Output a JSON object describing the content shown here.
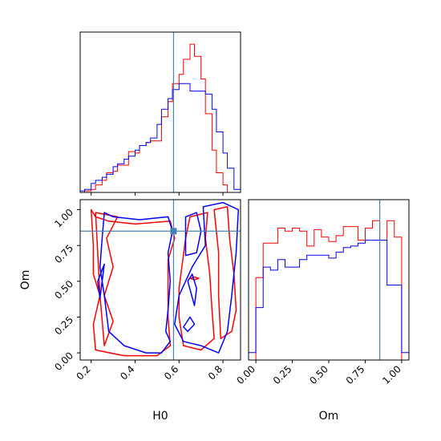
{
  "chart_data": [
    {
      "panel": "H0-marginal",
      "type": "histogram",
      "x_range": [
        0.15,
        0.88
      ],
      "truth": 0.575,
      "truth_color": "#4682b4",
      "series": [
        {
          "color": "#ff0000",
          "bins": [
            [
              0.15,
              0.17,
              0
            ],
            [
              0.17,
              0.2,
              1
            ],
            [
              0.2,
              0.22,
              2
            ],
            [
              0.22,
              0.25,
              5
            ],
            [
              0.25,
              0.27,
              8
            ],
            [
              0.27,
              0.3,
              13
            ],
            [
              0.3,
              0.32,
              14
            ],
            [
              0.32,
              0.35,
              18
            ],
            [
              0.35,
              0.37,
              18
            ],
            [
              0.37,
              0.4,
              27
            ],
            [
              0.4,
              0.42,
              26
            ],
            [
              0.42,
              0.45,
              31
            ],
            [
              0.45,
              0.47,
              33
            ],
            [
              0.47,
              0.5,
              34
            ],
            [
              0.5,
              0.52,
              34
            ],
            [
              0.52,
              0.55,
              50
            ],
            [
              0.55,
              0.57,
              60
            ],
            [
              0.57,
              0.6,
              72
            ],
            [
              0.6,
              0.62,
              78
            ],
            [
              0.62,
              0.65,
              88
            ],
            [
              0.65,
              0.67,
              98
            ],
            [
              0.67,
              0.7,
              90
            ],
            [
              0.7,
              0.72,
              75
            ],
            [
              0.72,
              0.75,
              52
            ],
            [
              0.75,
              0.77,
              28
            ],
            [
              0.77,
              0.8,
              13
            ],
            [
              0.8,
              0.82,
              5
            ],
            [
              0.82,
              0.85,
              0
            ]
          ]
        },
        {
          "color": "#0000ff",
          "bins": [
            [
              0.15,
              0.17,
              1
            ],
            [
              0.17,
              0.2,
              2
            ],
            [
              0.2,
              0.22,
              6
            ],
            [
              0.22,
              0.25,
              8
            ],
            [
              0.25,
              0.27,
              10
            ],
            [
              0.27,
              0.3,
              12
            ],
            [
              0.3,
              0.32,
              17
            ],
            [
              0.32,
              0.35,
              19
            ],
            [
              0.35,
              0.37,
              22
            ],
            [
              0.37,
              0.4,
              24
            ],
            [
              0.4,
              0.42,
              28
            ],
            [
              0.42,
              0.45,
              31
            ],
            [
              0.45,
              0.47,
              33
            ],
            [
              0.47,
              0.5,
              36
            ],
            [
              0.5,
              0.52,
              45
            ],
            [
              0.52,
              0.55,
              55
            ],
            [
              0.55,
              0.57,
              62
            ],
            [
              0.57,
              0.6,
              68
            ],
            [
              0.6,
              0.62,
              72
            ],
            [
              0.62,
              0.65,
              72
            ],
            [
              0.65,
              0.67,
              67
            ],
            [
              0.67,
              0.7,
              67
            ],
            [
              0.7,
              0.72,
              67
            ],
            [
              0.72,
              0.75,
              65
            ],
            [
              0.75,
              0.77,
              55
            ],
            [
              0.77,
              0.8,
              40
            ],
            [
              0.8,
              0.82,
              26
            ],
            [
              0.82,
              0.85,
              16
            ],
            [
              0.85,
              0.88,
              2
            ]
          ]
        }
      ]
    },
    {
      "panel": "Om-marginal",
      "type": "histogram",
      "x_range": [
        -0.05,
        1.05
      ],
      "truth": 0.85,
      "truth_color": "#4682b4",
      "series": [
        {
          "color": "#ff0000",
          "bins": [
            [
              0.0,
              0.05,
              55
            ],
            [
              0.05,
              0.1,
              78
            ],
            [
              0.1,
              0.15,
              78
            ],
            [
              0.15,
              0.2,
              88
            ],
            [
              0.2,
              0.25,
              86
            ],
            [
              0.25,
              0.3,
              88
            ],
            [
              0.3,
              0.35,
              86
            ],
            [
              0.35,
              0.4,
              76
            ],
            [
              0.4,
              0.45,
              87
            ],
            [
              0.45,
              0.5,
              82
            ],
            [
              0.5,
              0.55,
              79
            ],
            [
              0.55,
              0.6,
              83
            ],
            [
              0.6,
              0.65,
              89
            ],
            [
              0.65,
              0.7,
              89
            ],
            [
              0.7,
              0.75,
              80
            ],
            [
              0.75,
              0.8,
              88
            ],
            [
              0.8,
              0.85,
              93
            ],
            [
              0.85,
              0.9,
              80
            ],
            [
              0.9,
              0.95,
              93
            ],
            [
              0.95,
              1.0,
              82
            ]
          ]
        },
        {
          "color": "#0000ff",
          "bins": [
            [
              -0.05,
              0.0,
              5
            ],
            [
              0.0,
              0.05,
              35
            ],
            [
              0.05,
              0.1,
              62
            ],
            [
              0.1,
              0.15,
              60
            ],
            [
              0.15,
              0.2,
              67
            ],
            [
              0.2,
              0.25,
              62
            ],
            [
              0.25,
              0.3,
              62
            ],
            [
              0.3,
              0.35,
              67
            ],
            [
              0.35,
              0.4,
              70
            ],
            [
              0.4,
              0.45,
              70
            ],
            [
              0.45,
              0.5,
              70
            ],
            [
              0.5,
              0.55,
              68
            ],
            [
              0.55,
              0.6,
              72
            ],
            [
              0.6,
              0.65,
              75
            ],
            [
              0.65,
              0.7,
              76
            ],
            [
              0.7,
              0.75,
              78
            ],
            [
              0.75,
              0.8,
              80
            ],
            [
              0.8,
              0.85,
              80
            ],
            [
              0.85,
              0.9,
              80
            ],
            [
              0.9,
              0.95,
              50
            ],
            [
              0.95,
              1.0,
              50
            ],
            [
              1.0,
              1.05,
              5
            ]
          ]
        }
      ]
    },
    {
      "panel": "H0-Om-joint",
      "type": "contour",
      "x_range": [
        0.15,
        0.88
      ],
      "y_range": [
        -0.05,
        1.07
      ],
      "truth": {
        "x": 0.575,
        "y": 0.85
      },
      "truth_color": "#4682b4",
      "contours": [
        {
          "color": "#ff0000",
          "points": [
            [
              0.2,
              1.0
            ],
            [
              0.22,
              0.95
            ],
            [
              0.28,
              0.92
            ],
            [
              0.4,
              0.9
            ],
            [
              0.56,
              0.92
            ],
            [
              0.58,
              0.8
            ],
            [
              0.55,
              0.65
            ],
            [
              0.55,
              0.45
            ],
            [
              0.55,
              0.25
            ],
            [
              0.56,
              0.05
            ],
            [
              0.5,
              -0.02
            ],
            [
              0.35,
              -0.02
            ],
            [
              0.22,
              0.02
            ],
            [
              0.21,
              0.2
            ],
            [
              0.24,
              0.4
            ],
            [
              0.21,
              0.55
            ],
            [
              0.21,
              0.75
            ],
            [
              0.2,
              1.0
            ]
          ]
        },
        {
          "color": "#ff0000",
          "points": [
            [
              0.22,
              0.98
            ],
            [
              0.32,
              0.95
            ],
            [
              0.27,
              0.8
            ],
            [
              0.3,
              0.6
            ],
            [
              0.26,
              0.4
            ],
            [
              0.3,
              0.22
            ],
            [
              0.26,
              0.05
            ],
            [
              0.24,
              0.4
            ],
            [
              0.22,
              0.98
            ]
          ]
        },
        {
          "color": "#ff0000",
          "points": [
            [
              0.6,
              0.45
            ],
            [
              0.63,
              0.8
            ],
            [
              0.65,
              0.95
            ],
            [
              0.73,
              0.98
            ],
            [
              0.72,
              0.8
            ],
            [
              0.74,
              0.55
            ],
            [
              0.75,
              0.3
            ],
            [
              0.76,
              0.1
            ],
            [
              0.7,
              0.02
            ],
            [
              0.62,
              0.05
            ],
            [
              0.6,
              0.25
            ],
            [
              0.6,
              0.45
            ]
          ]
        },
        {
          "color": "#ff0000",
          "points": [
            [
              0.76,
              1.0
            ],
            [
              0.82,
              1.02
            ],
            [
              0.83,
              0.8
            ],
            [
              0.85,
              0.55
            ],
            [
              0.86,
              0.3
            ],
            [
              0.84,
              0.15
            ],
            [
              0.79,
              0.1
            ],
            [
              0.78,
              0.4
            ],
            [
              0.78,
              0.7
            ],
            [
              0.76,
              1.0
            ]
          ]
        },
        {
          "color": "#ff0000",
          "points": [
            [
              0.65,
              0.52
            ],
            [
              0.67,
              0.53
            ],
            [
              0.69,
              0.52
            ],
            [
              0.67,
              0.51
            ],
            [
              0.65,
              0.52
            ]
          ]
        },
        {
          "color": "#0000ff",
          "points": [
            [
              0.26,
              0.98
            ],
            [
              0.3,
              0.95
            ],
            [
              0.42,
              0.93
            ],
            [
              0.55,
              0.95
            ],
            [
              0.57,
              0.85
            ],
            [
              0.55,
              0.7
            ],
            [
              0.56,
              0.5
            ],
            [
              0.55,
              0.3
            ],
            [
              0.54,
              0.15
            ],
            [
              0.56,
              0.08
            ],
            [
              0.52,
              0.0
            ],
            [
              0.45,
              0.0
            ],
            [
              0.35,
              0.05
            ],
            [
              0.28,
              0.15
            ],
            [
              0.26,
              0.4
            ],
            [
              0.24,
              0.6
            ],
            [
              0.25,
              0.8
            ],
            [
              0.26,
              0.98
            ]
          ]
        },
        {
          "color": "#0000ff",
          "points": [
            [
              0.23,
              0.5
            ],
            [
              0.26,
              0.62
            ],
            [
              0.24,
              0.38
            ],
            [
              0.23,
              0.5
            ]
          ]
        },
        {
          "color": "#0000ff",
          "points": [
            [
              0.63,
              0.95
            ],
            [
              0.68,
              0.98
            ],
            [
              0.7,
              0.85
            ],
            [
              0.68,
              0.7
            ],
            [
              0.63,
              0.68
            ],
            [
              0.63,
              0.8
            ],
            [
              0.63,
              0.95
            ]
          ]
        },
        {
          "color": "#0000ff",
          "points": [
            [
              0.64,
              0.5
            ],
            [
              0.67,
              0.33
            ],
            [
              0.68,
              0.45
            ],
            [
              0.66,
              0.55
            ],
            [
              0.64,
              0.5
            ]
          ]
        },
        {
          "color": "#0000ff",
          "points": [
            [
              0.71,
              1.02
            ],
            [
              0.8,
              1.05
            ],
            [
              0.87,
              1.0
            ],
            [
              0.86,
              0.7
            ],
            [
              0.84,
              0.4
            ],
            [
              0.82,
              0.15
            ],
            [
              0.78,
              0.0
            ],
            [
              0.7,
              0.05
            ],
            [
              0.62,
              0.08
            ],
            [
              0.58,
              0.2
            ],
            [
              0.6,
              0.4
            ],
            [
              0.66,
              0.6
            ],
            [
              0.72,
              0.75
            ],
            [
              0.71,
              1.02
            ]
          ]
        },
        {
          "color": "#0000ff",
          "points": [
            [
              0.62,
              0.18
            ],
            [
              0.65,
              0.25
            ],
            [
              0.67,
              0.2
            ],
            [
              0.64,
              0.15
            ],
            [
              0.62,
              0.18
            ]
          ]
        }
      ]
    }
  ],
  "axes": {
    "h0": {
      "label": "H0",
      "ticks": [
        "0.2",
        "0.4",
        "0.6",
        "0.8"
      ]
    },
    "om_x": {
      "label": "Om",
      "ticks": [
        "0.00",
        "0.25",
        "0.50",
        "0.75",
        "1.00"
      ]
    },
    "om_y": {
      "label": "Om",
      "ticks": [
        "0.00",
        "0.25",
        "0.50",
        "0.75",
        "1.00"
      ]
    }
  }
}
